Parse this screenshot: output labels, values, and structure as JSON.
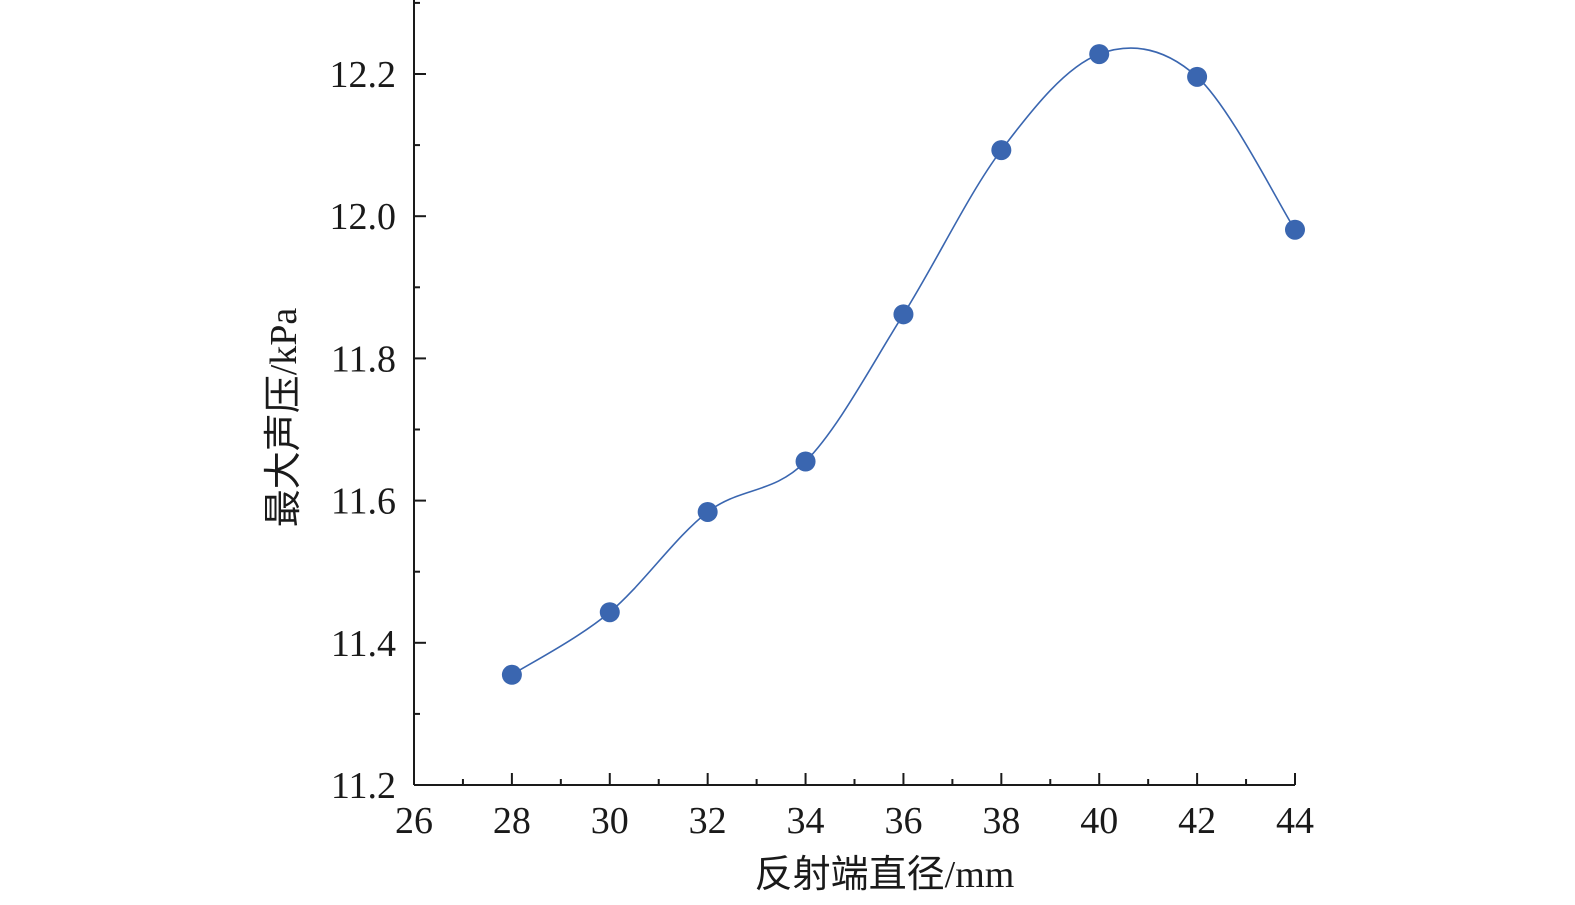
{
  "chart_data": {
    "type": "line",
    "xlabel": "反射端直径/mm",
    "ylabel": "最大声压/kPa",
    "xlim": [
      26,
      44
    ],
    "ylim": [
      11.2,
      12.3
    ],
    "x_ticks": [
      26,
      28,
      30,
      32,
      34,
      36,
      38,
      40,
      42,
      44
    ],
    "y_ticks": [
      11.2,
      11.4,
      11.6,
      11.8,
      12.0,
      12.2
    ],
    "y_tick_labels": [
      "11.2",
      "11.4",
      "11.6",
      "11.8",
      "12.0",
      "12.2"
    ],
    "grid": false,
    "series": [
      {
        "x": [
          28,
          30,
          32,
          34,
          36,
          38,
          40,
          42,
          44
        ],
        "values": [
          11.355,
          11.443,
          11.584,
          11.655,
          11.862,
          12.093,
          12.228,
          12.196,
          11.981
        ],
        "color": "#3a66b0",
        "line_style": "smooth",
        "marker": "circle"
      }
    ]
  }
}
